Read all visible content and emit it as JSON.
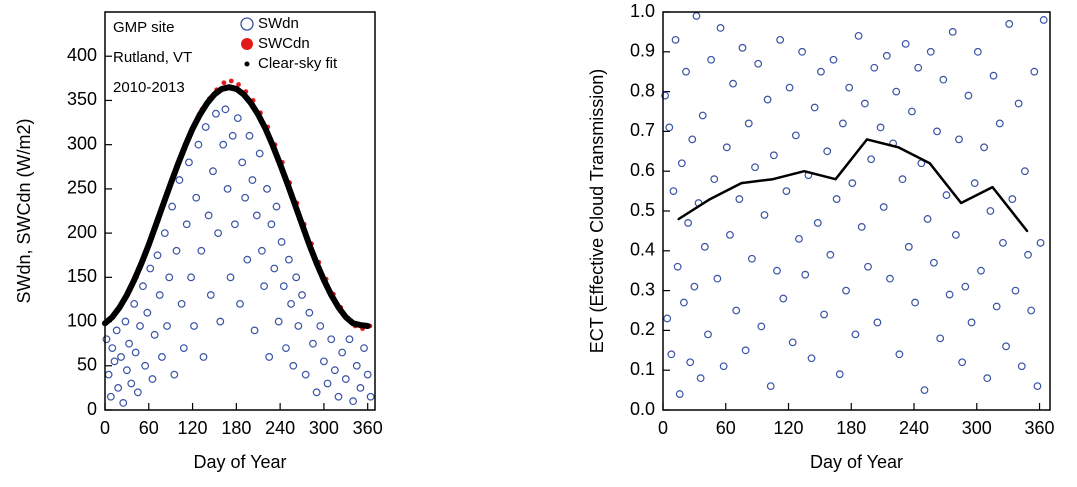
{
  "chart_data": [
    {
      "type": "scatter",
      "annotations": [
        "GMP site",
        "Rutland, VT",
        "2010-2013"
      ],
      "x_label": "Day of Year",
      "y_label": "SWdn, SWCdn (W/m2)",
      "xlim": [
        0,
        370
      ],
      "xticks": [
        0,
        60,
        120,
        180,
        240,
        300,
        360
      ],
      "ylim": [
        0,
        450
      ],
      "yticks": [
        0,
        50,
        100,
        150,
        200,
        250,
        300,
        350,
        400
      ],
      "legend": "upper right",
      "series": [
        {
          "name": "SWdn",
          "color": "#3a53a4",
          "style": "open-circle",
          "x": [
            2,
            5,
            8,
            10,
            13,
            16,
            18,
            22,
            25,
            28,
            30,
            33,
            36,
            40,
            42,
            45,
            48,
            52,
            55,
            58,
            62,
            65,
            68,
            72,
            75,
            78,
            82,
            85,
            88,
            92,
            95,
            98,
            102,
            105,
            108,
            112,
            115,
            118,
            122,
            125,
            128,
            132,
            135,
            138,
            142,
            145,
            148,
            152,
            155,
            158,
            162,
            165,
            168,
            172,
            175,
            178,
            182,
            185,
            188,
            192,
            195,
            198,
            202,
            205,
            208,
            212,
            215,
            218,
            222,
            225,
            228,
            232,
            235,
            238,
            242,
            245,
            248,
            252,
            255,
            258,
            262,
            265,
            270,
            275,
            280,
            285,
            290,
            295,
            300,
            305,
            310,
            315,
            320,
            325,
            330,
            335,
            340,
            345,
            350,
            355,
            360,
            364
          ],
          "values": [
            80,
            40,
            15,
            70,
            55,
            90,
            25,
            60,
            8,
            100,
            45,
            75,
            30,
            120,
            65,
            20,
            95,
            140,
            50,
            110,
            160,
            35,
            85,
            175,
            130,
            60,
            200,
            95,
            150,
            230,
            40,
            180,
            260,
            120,
            70,
            210,
            280,
            150,
            95,
            240,
            300,
            180,
            60,
            320,
            220,
            130,
            270,
            335,
            200,
            100,
            300,
            340,
            250,
            150,
            310,
            210,
            330,
            120,
            280,
            240,
            170,
            310,
            260,
            90,
            220,
            290,
            180,
            140,
            250,
            60,
            210,
            160,
            230,
            100,
            190,
            140,
            70,
            170,
            120,
            50,
            150,
            95,
            130,
            40,
            110,
            75,
            20,
            95,
            55,
            30,
            80,
            45,
            15,
            65,
            35,
            80,
            10,
            50,
            25,
            70,
            40,
            15
          ]
        },
        {
          "name": "SWCdn",
          "color": "#e31a1c",
          "style": "dot",
          "x": [
            3,
            13,
            23,
            33,
            43,
            53,
            63,
            73,
            83,
            93,
            103,
            113,
            123,
            133,
            143,
            153,
            163,
            173,
            183,
            193,
            203,
            213,
            223,
            233,
            243,
            253,
            263,
            273,
            283,
            293,
            303,
            313,
            323,
            333,
            343,
            353,
            363
          ],
          "values": [
            100,
            108,
            120,
            135,
            150,
            170,
            192,
            214,
            238,
            262,
            284,
            304,
            324,
            340,
            352,
            362,
            370,
            372,
            368,
            360,
            350,
            336,
            320,
            300,
            280,
            257,
            234,
            210,
            188,
            167,
            148,
            131,
            116,
            104,
            95,
            92,
            95
          ]
        },
        {
          "name": "Clear-sky fit",
          "color": "#000000",
          "style": "thick-line",
          "x": [
            0,
            10,
            20,
            30,
            40,
            50,
            60,
            70,
            80,
            90,
            100,
            110,
            120,
            130,
            140,
            150,
            160,
            170,
            180,
            190,
            200,
            210,
            220,
            230,
            240,
            250,
            260,
            270,
            280,
            290,
            300,
            310,
            320,
            330,
            340,
            350,
            360
          ],
          "values": [
            98,
            105,
            116,
            130,
            147,
            166,
            187,
            210,
            233,
            256,
            278,
            299,
            318,
            334,
            347,
            357,
            363,
            365,
            363,
            357,
            347,
            334,
            318,
            299,
            278,
            256,
            233,
            210,
            187,
            166,
            147,
            130,
            116,
            105,
            98,
            96,
            95
          ]
        }
      ]
    },
    {
      "type": "scatter",
      "x_label": "Day of Year",
      "y_label": "ECT (Effective Cloud Transmission)",
      "xlim": [
        0,
        370
      ],
      "xticks": [
        0,
        60,
        120,
        180,
        240,
        300,
        360
      ],
      "ylim": [
        0,
        1
      ],
      "yticks": [
        {
          "value": 0,
          "label": "0.0"
        },
        0.1,
        0.2,
        0.3,
        0.4,
        0.5,
        0.6,
        0.7,
        0.8,
        0.9,
        {
          "value": 1,
          "label": "1.0"
        }
      ],
      "series": [
        {
          "color": "#3a53a4",
          "style": "open-circle",
          "x": [
            2,
            4,
            6,
            8,
            10,
            12,
            14,
            16,
            18,
            20,
            22,
            24,
            26,
            28,
            30,
            32,
            34,
            36,
            38,
            40,
            43,
            46,
            49,
            52,
            55,
            58,
            61,
            64,
            67,
            70,
            73,
            76,
            79,
            82,
            85,
            88,
            91,
            94,
            97,
            100,
            103,
            106,
            109,
            112,
            115,
            118,
            121,
            124,
            127,
            130,
            133,
            136,
            139,
            142,
            145,
            148,
            151,
            154,
            157,
            160,
            163,
            166,
            169,
            172,
            175,
            178,
            181,
            184,
            187,
            190,
            193,
            196,
            199,
            202,
            205,
            208,
            211,
            214,
            217,
            220,
            223,
            226,
            229,
            232,
            235,
            238,
            241,
            244,
            247,
            250,
            253,
            256,
            259,
            262,
            265,
            268,
            271,
            274,
            277,
            280,
            283,
            286,
            289,
            292,
            295,
            298,
            301,
            304,
            307,
            310,
            313,
            316,
            319,
            322,
            325,
            328,
            331,
            334,
            337,
            340,
            343,
            346,
            349,
            352,
            355,
            358,
            361,
            364
          ],
          "values": [
            0.79,
            0.23,
            0.71,
            0.14,
            0.55,
            0.93,
            0.36,
            0.04,
            0.62,
            0.27,
            0.85,
            0.47,
            0.12,
            0.68,
            0.31,
            0.99,
            0.52,
            0.08,
            0.74,
            0.41,
            0.19,
            0.88,
            0.58,
            0.33,
            0.96,
            0.11,
            0.66,
            0.44,
            0.82,
            0.25,
            0.53,
            0.91,
            0.15,
            0.72,
            0.38,
            0.61,
            0.87,
            0.21,
            0.49,
            0.78,
            0.06,
            0.64,
            0.35,
            0.93,
            0.28,
            0.55,
            0.81,
            0.17,
            0.69,
            0.43,
            0.9,
            0.34,
            0.59,
            0.13,
            0.76,
            0.47,
            0.85,
            0.24,
            0.65,
            0.39,
            0.88,
            0.53,
            0.09,
            0.72,
            0.3,
            0.81,
            0.57,
            0.19,
            0.94,
            0.46,
            0.77,
            0.36,
            0.63,
            0.86,
            0.22,
            0.71,
            0.51,
            0.89,
            0.33,
            0.67,
            0.8,
            0.14,
            0.58,
            0.92,
            0.41,
            0.75,
            0.27,
            0.86,
            0.62,
            0.05,
            0.48,
            0.9,
            0.37,
            0.7,
            0.18,
            0.83,
            0.54,
            0.29,
            0.95,
            0.44,
            0.68,
            0.12,
            0.31,
            0.79,
            0.22,
            0.57,
            0.9,
            0.35,
            0.66,
            0.08,
            0.5,
            0.84,
            0.26,
            0.72,
            0.42,
            0.16,
            0.97,
            0.53,
            0.3,
            0.77,
            0.11,
            0.6,
            0.39,
            0.25,
            0.85,
            0.06,
            0.42,
            0.98
          ]
        },
        {
          "color": "#000000",
          "style": "line",
          "x": [
            15,
            45,
            75,
            105,
            135,
            165,
            195,
            225,
            255,
            285,
            315,
            348
          ],
          "values": [
            0.48,
            0.53,
            0.57,
            0.58,
            0.6,
            0.58,
            0.68,
            0.66,
            0.62,
            0.52,
            0.56,
            0.45
          ]
        }
      ]
    }
  ]
}
